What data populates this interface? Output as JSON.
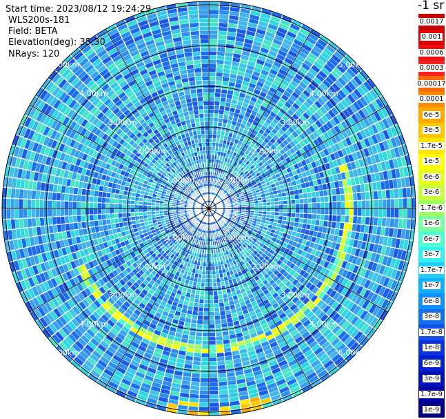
{
  "info": {
    "start_time": "Start time: 2023/08/12 19:24:29",
    "site": "WLS200s-181",
    "field": "Field: BETA",
    "elevation": "Elevation(deg): 35.30",
    "nrays": "NRays: 120"
  },
  "rings": [
    "1.00km",
    "2.00km",
    "3.00km",
    "4.00km",
    "5.00km"
  ],
  "legend": {
    "title": "-1 sr",
    "labels": [
      "0.0017",
      "0.001",
      "0.0006",
      "0.0003",
      "0.00017",
      "0.0001",
      "6e-5",
      "3e-5",
      "1.7e-5",
      "1e-5",
      "6e-6",
      "3e-6",
      "1.7e-6",
      "1e-6",
      "6e-7",
      "3e-7",
      "1.7e-7",
      "1e-7",
      "6e-8",
      "3e-8",
      "1.7e-8",
      "1e-8",
      "6e-9",
      "3e-9",
      "1.7e-9",
      "1e-9"
    ],
    "colors": [
      "#c80000",
      "#dc0000",
      "#ee1010",
      "#ff2020",
      "#ff6a00",
      "#ff8c00",
      "#ffaa00",
      "#ffc800",
      "#ffe400",
      "#ffff00",
      "#e6ff1a",
      "#c8ff3a",
      "#a0ff60",
      "#7affa0",
      "#50ffd0",
      "#30f0f0",
      "#20d0f8",
      "#10b0ff",
      "#1090ff",
      "#1070f0",
      "#1050e8",
      "#0a30e0",
      "#0020d0",
      "#0010b8",
      "#0000a0",
      "#000080"
    ]
  }
}
